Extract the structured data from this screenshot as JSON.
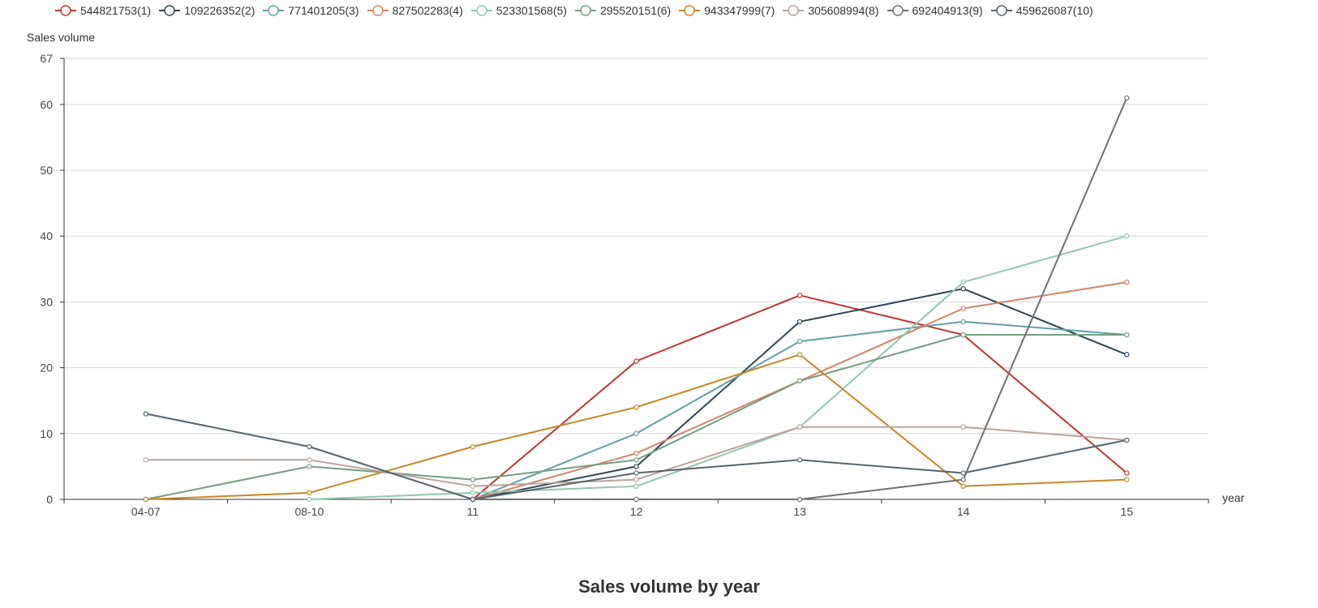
{
  "chart_data": {
    "type": "line",
    "title": "Sales volume by year",
    "xlabel": "year",
    "ylabel": "Sales volume",
    "categories": [
      "04-07",
      "08-10",
      "11",
      "12",
      "13",
      "14",
      "15"
    ],
    "ylim": [
      0,
      67
    ],
    "yticks": [
      0,
      10,
      20,
      30,
      40,
      50,
      60,
      67
    ],
    "grid": true,
    "legend_position": "top",
    "series": [
      {
        "name": "544821753(1)",
        "color": "#c23531",
        "values": [
          null,
          null,
          0,
          21,
          31,
          25,
          4
        ]
      },
      {
        "name": "109226352(2)",
        "color": "#2f4554",
        "values": [
          null,
          null,
          0,
          5,
          27,
          32,
          22
        ]
      },
      {
        "name": "771401205(3)",
        "color": "#61a0a8",
        "values": [
          null,
          null,
          0,
          10,
          24,
          27,
          25
        ]
      },
      {
        "name": "827502283(4)",
        "color": "#d48265",
        "values": [
          null,
          null,
          0,
          7,
          18,
          29,
          33
        ]
      },
      {
        "name": "523301568(5)",
        "color": "#91c7ae",
        "values": [
          null,
          0,
          1,
          2,
          11,
          33,
          40
        ]
      },
      {
        "name": "295520151(6)",
        "color": "#749f83",
        "values": [
          0,
          5,
          3,
          6,
          18,
          25,
          25
        ]
      },
      {
        "name": "943347999(7)",
        "color": "#ca8622",
        "values": [
          0,
          1,
          8,
          14,
          22,
          2,
          3
        ]
      },
      {
        "name": "305608994(8)",
        "color": "#bda29a",
        "values": [
          6,
          6,
          2,
          3,
          11,
          11,
          9
        ]
      },
      {
        "name": "692404913(9)",
        "color": "#6e7074",
        "values": [
          null,
          null,
          0,
          0,
          0,
          3,
          61
        ]
      },
      {
        "name": "459626087(10)",
        "color": "#546570",
        "values": [
          13,
          8,
          0,
          4,
          6,
          4,
          9
        ]
      }
    ]
  }
}
